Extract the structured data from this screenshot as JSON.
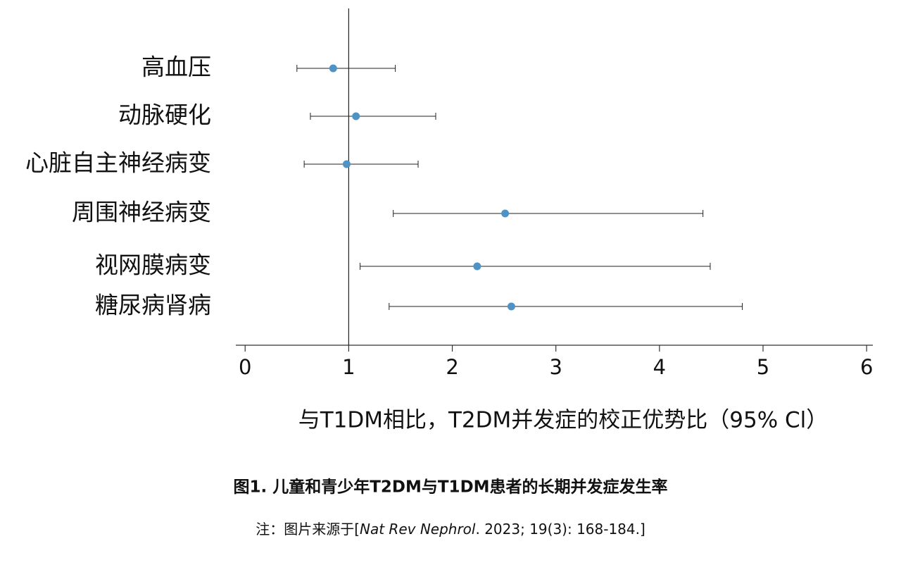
{
  "chart_data": {
    "type": "forest",
    "categories": [
      "高血压",
      "动脉硬化",
      "心脏自主神经病变",
      "周围神经病变",
      "视网膜病变",
      "糖尿病肾病"
    ],
    "values": [
      0.85,
      1.07,
      0.98,
      2.51,
      2.24,
      2.57
    ],
    "lower": [
      0.5,
      0.63,
      0.57,
      1.43,
      1.11,
      1.39
    ],
    "upper": [
      1.45,
      1.84,
      1.67,
      4.42,
      4.49,
      4.8
    ],
    "color": "#4f93c6",
    "ref_line": 1,
    "xlim": [
      -0.09,
      6.06
    ],
    "xticks": [
      0,
      1,
      2,
      3,
      4,
      5,
      6
    ],
    "xlabel": "与T1DM相比，T2DM并发症的校正优势比（95% Cl）",
    "caption": "图1. 儿童和青少年T2DM与T1DM患者的长期并发症发生率",
    "note": {
      "prefix": "注：图片来源于[",
      "journal": "Nat Rev Nephrol",
      "suffix": ". 2023; 19(3): 168-184.]"
    }
  }
}
